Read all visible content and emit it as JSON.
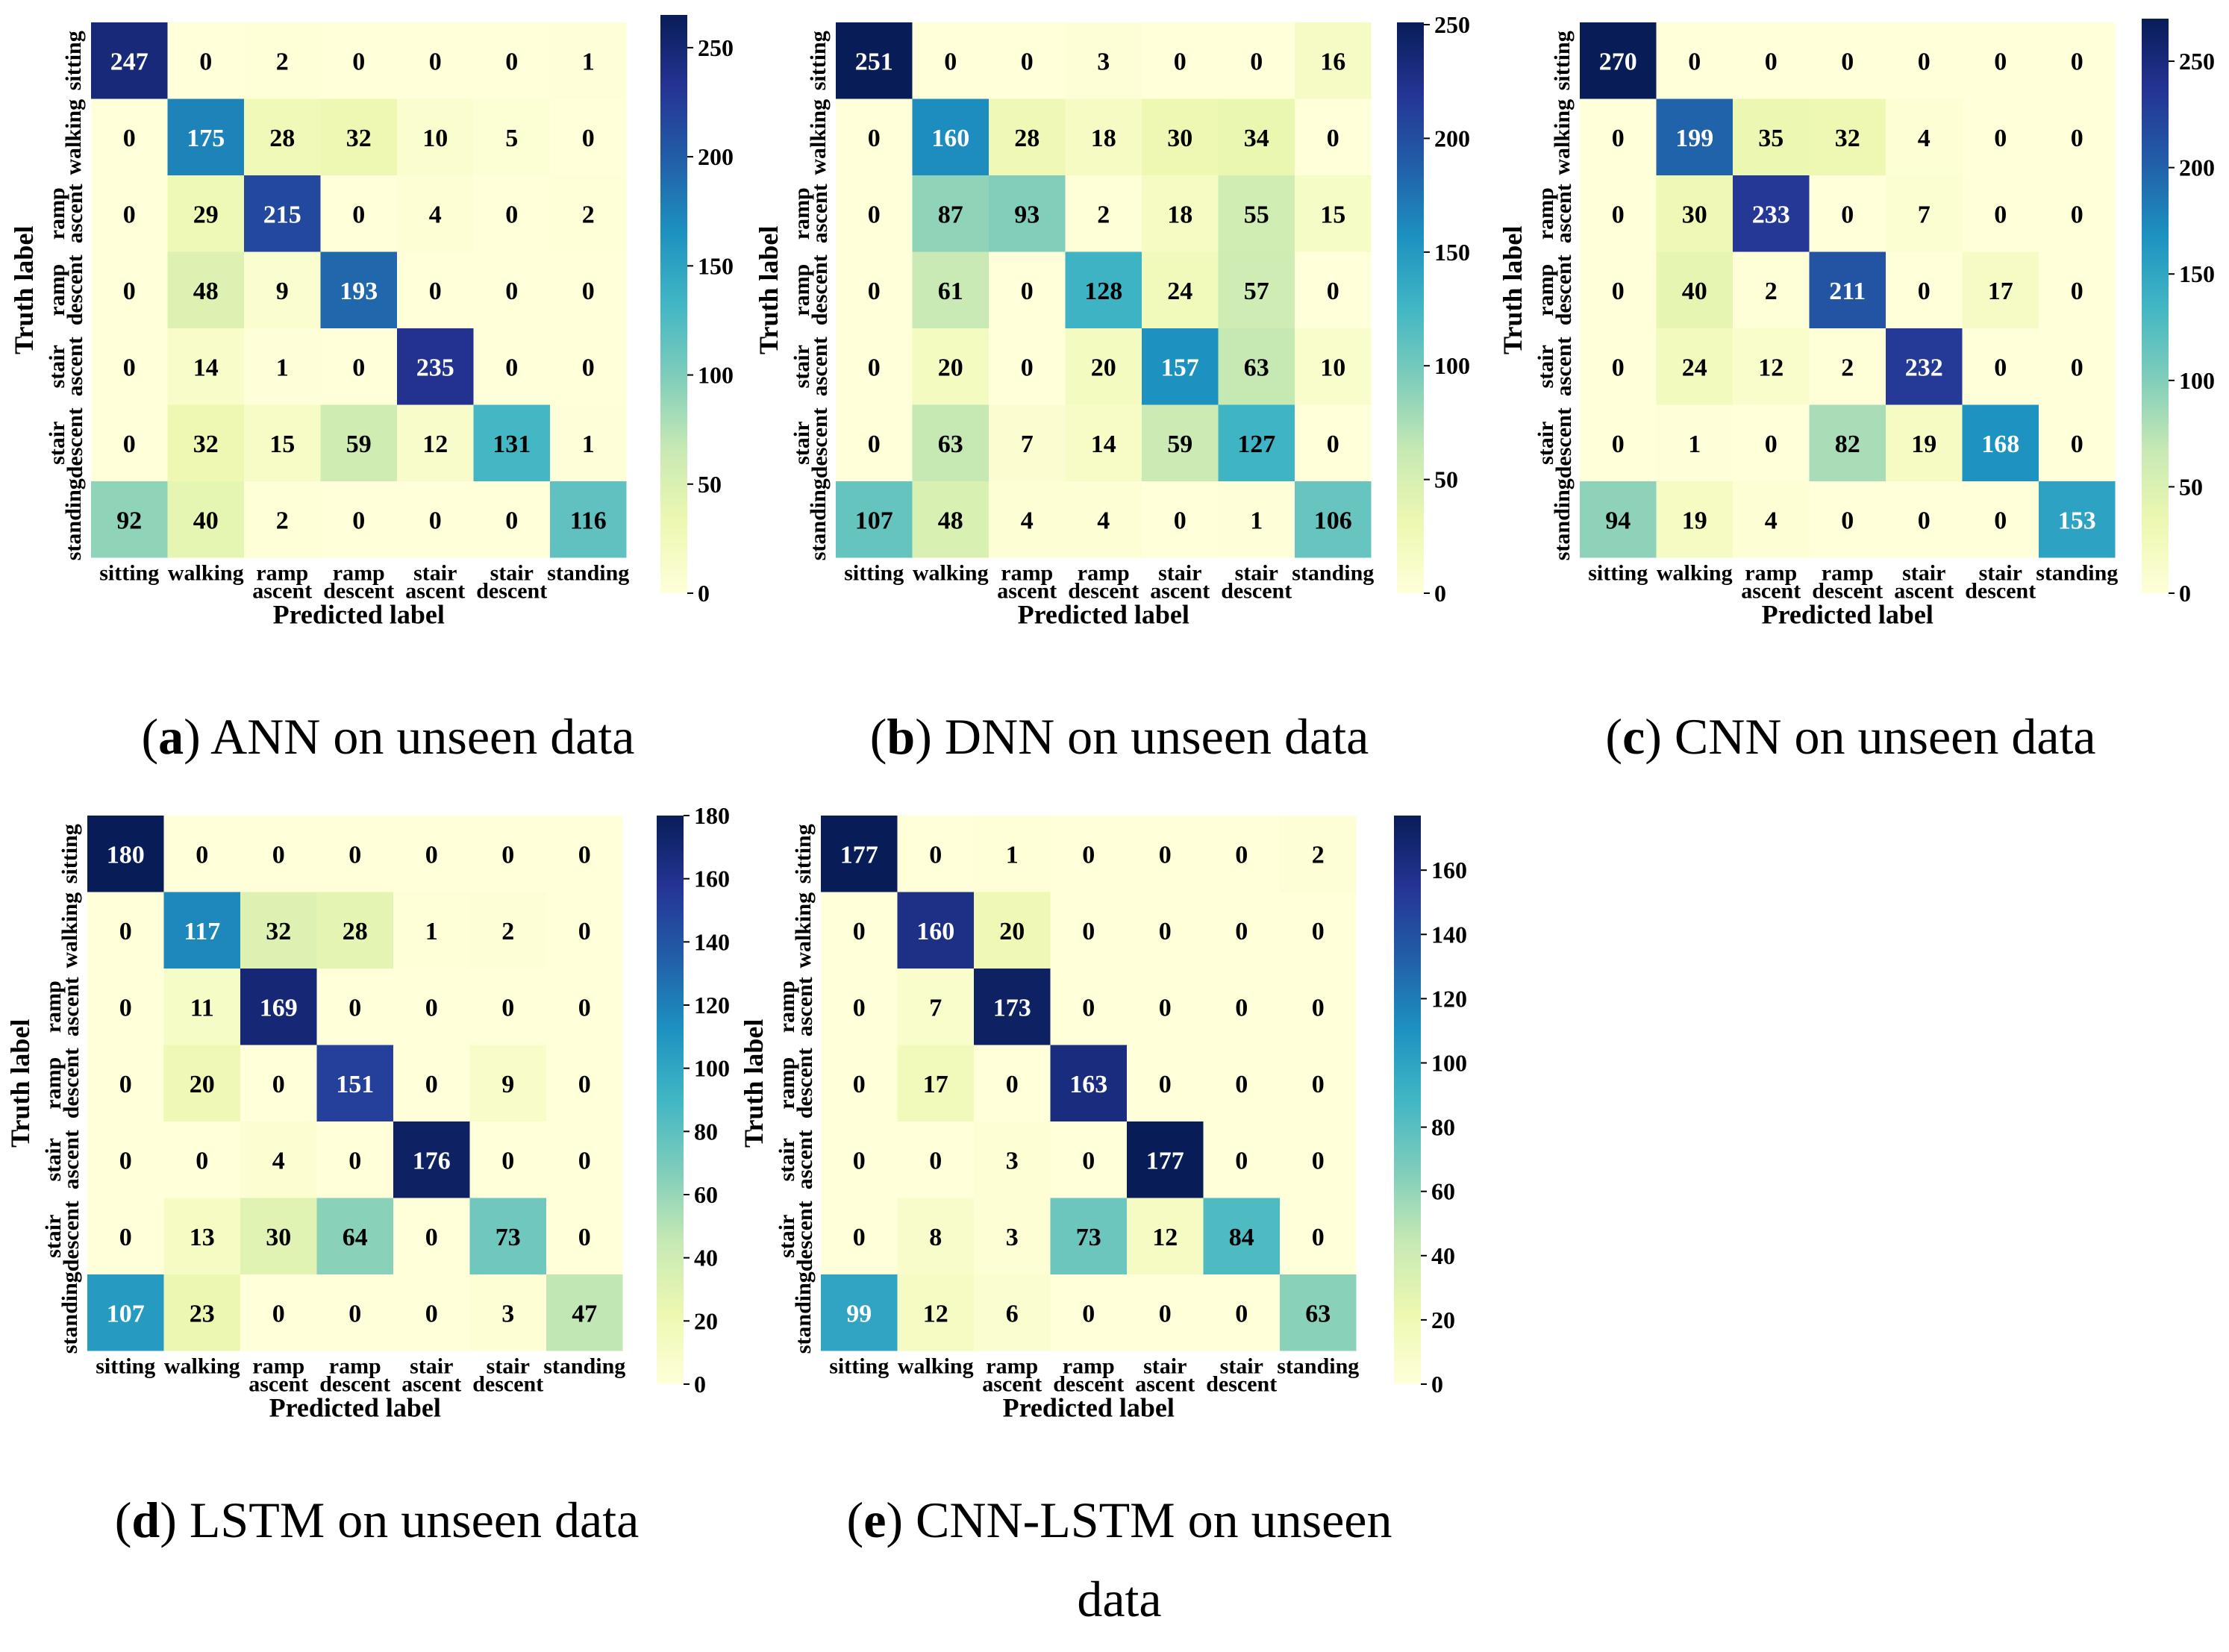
{
  "figure": {
    "colors": {
      "scale": [
        "#ffffd9",
        "#edf8b1",
        "#c7e9b4",
        "#7fcdbb",
        "#41b6c4",
        "#1d91c0",
        "#225ea8",
        "#253494",
        "#081d58"
      ],
      "text_dark": "#000000",
      "text_light": "#ffffff",
      "background": "#ffffff"
    }
  },
  "chart_data": [
    {
      "type": "heatmap",
      "panel": "a",
      "caption_letter": "a",
      "caption_text": "ANN on unseen data",
      "xlabel": "Predicted label",
      "ylabel": "Truth label",
      "x_tick_labels": [
        "sitting",
        "walking",
        "ramp ascent",
        "ramp descent",
        "stair ascent",
        "stair descent",
        "standing"
      ],
      "y_tick_labels": [
        "sitting",
        "walking",
        "ramp ascent",
        "ramp descent",
        "stair ascent",
        "stair descent",
        "standing"
      ],
      "matrix": [
        [
          247,
          0,
          2,
          0,
          0,
          0,
          1
        ],
        [
          0,
          175,
          28,
          32,
          10,
          5,
          0
        ],
        [
          0,
          29,
          215,
          0,
          4,
          0,
          2
        ],
        [
          0,
          48,
          9,
          193,
          0,
          0,
          0
        ],
        [
          0,
          14,
          1,
          0,
          235,
          0,
          0
        ],
        [
          0,
          32,
          15,
          59,
          12,
          131,
          1
        ],
        [
          92,
          40,
          2,
          0,
          0,
          0,
          116
        ]
      ],
      "vmin": 0,
      "vmax": 265,
      "colorbar_ticks": [
        0,
        50,
        100,
        150,
        200,
        250
      ]
    },
    {
      "type": "heatmap",
      "panel": "b",
      "caption_letter": "b",
      "caption_text": "DNN on unseen data",
      "xlabel": "Predicted label",
      "ylabel": "Truth label",
      "x_tick_labels": [
        "sitting",
        "walking",
        "ramp ascent",
        "ramp descent",
        "stair ascent",
        "stair descent",
        "standing"
      ],
      "y_tick_labels": [
        "sitting",
        "walking",
        "ramp ascent",
        "ramp descent",
        "stair ascent",
        "stair descent",
        "standing"
      ],
      "matrix": [
        [
          251,
          0,
          0,
          3,
          0,
          0,
          16
        ],
        [
          0,
          160,
          28,
          18,
          30,
          34,
          0
        ],
        [
          0,
          87,
          93,
          2,
          18,
          55,
          15
        ],
        [
          0,
          61,
          0,
          128,
          24,
          57,
          0
        ],
        [
          0,
          20,
          0,
          20,
          157,
          63,
          10
        ],
        [
          0,
          63,
          7,
          14,
          59,
          127,
          0
        ],
        [
          107,
          48,
          4,
          4,
          0,
          1,
          106
        ]
      ],
      "vmin": 0,
      "vmax": 251,
      "colorbar_ticks": [
        0,
        50,
        100,
        150,
        200,
        250
      ]
    },
    {
      "type": "heatmap",
      "panel": "c",
      "caption_letter": "c",
      "caption_text": "CNN on unseen data",
      "xlabel": "Predicted label",
      "ylabel": "Truth label",
      "x_tick_labels": [
        "sitting",
        "walking",
        "ramp ascent",
        "ramp descent",
        "stair ascent",
        "stair descent",
        "standing"
      ],
      "y_tick_labels": [
        "sitting",
        "walking",
        "ramp ascent",
        "ramp descent",
        "stair ascent",
        "stair descent",
        "standing"
      ],
      "matrix": [
        [
          270,
          0,
          0,
          0,
          0,
          0,
          0
        ],
        [
          0,
          199,
          35,
          32,
          4,
          0,
          0
        ],
        [
          0,
          30,
          233,
          0,
          7,
          0,
          0
        ],
        [
          0,
          40,
          2,
          211,
          0,
          17,
          0
        ],
        [
          0,
          24,
          12,
          2,
          232,
          0,
          0
        ],
        [
          0,
          1,
          0,
          82,
          19,
          168,
          0
        ],
        [
          94,
          19,
          4,
          0,
          0,
          0,
          153
        ]
      ],
      "vmin": 0,
      "vmax": 270,
      "colorbar_ticks": [
        0,
        50,
        100,
        150,
        200,
        250
      ]
    },
    {
      "type": "heatmap",
      "panel": "d",
      "caption_letter": "d",
      "caption_text": "LSTM on unseen data",
      "xlabel": "Predicted label",
      "ylabel": "Truth label",
      "x_tick_labels": [
        "sitting",
        "walking",
        "ramp ascent",
        "ramp descent",
        "stair ascent",
        "stair descent",
        "standing"
      ],
      "y_tick_labels": [
        "sitting",
        "walking",
        "ramp ascent",
        "ramp descent",
        "stair ascent",
        "stair descent",
        "standing"
      ],
      "matrix": [
        [
          180,
          0,
          0,
          0,
          0,
          0,
          0
        ],
        [
          0,
          117,
          32,
          28,
          1,
          2,
          0
        ],
        [
          0,
          11,
          169,
          0,
          0,
          0,
          0
        ],
        [
          0,
          20,
          0,
          151,
          0,
          9,
          0
        ],
        [
          0,
          0,
          4,
          0,
          176,
          0,
          0
        ],
        [
          0,
          13,
          30,
          64,
          0,
          73,
          0
        ],
        [
          107,
          23,
          0,
          0,
          0,
          3,
          47
        ]
      ],
      "vmin": 0,
      "vmax": 180,
      "colorbar_ticks": [
        0,
        20,
        40,
        60,
        80,
        100,
        120,
        140,
        160,
        180
      ]
    },
    {
      "type": "heatmap",
      "panel": "e",
      "caption_letter": "e",
      "caption_text": "CNN-LSTM on unseen data",
      "xlabel": "Predicted label",
      "ylabel": "Truth label",
      "x_tick_labels": [
        "sitting",
        "walking",
        "ramp ascent",
        "ramp descent",
        "stair ascent",
        "stair descent",
        "standing"
      ],
      "y_tick_labels": [
        "sitting",
        "walking",
        "ramp ascent",
        "ramp descent",
        "stair ascent",
        "stair descent",
        "standing"
      ],
      "matrix": [
        [
          177,
          0,
          1,
          0,
          0,
          0,
          2
        ],
        [
          0,
          160,
          20,
          0,
          0,
          0,
          0
        ],
        [
          0,
          7,
          173,
          0,
          0,
          0,
          0
        ],
        [
          0,
          17,
          0,
          163,
          0,
          0,
          0
        ],
        [
          0,
          0,
          3,
          0,
          177,
          0,
          0
        ],
        [
          0,
          8,
          3,
          73,
          12,
          84,
          0
        ],
        [
          99,
          12,
          6,
          0,
          0,
          0,
          63
        ]
      ],
      "vmin": 0,
      "vmax": 177,
      "colorbar_ticks": [
        0,
        20,
        40,
        60,
        80,
        100,
        120,
        140,
        160
      ]
    }
  ]
}
